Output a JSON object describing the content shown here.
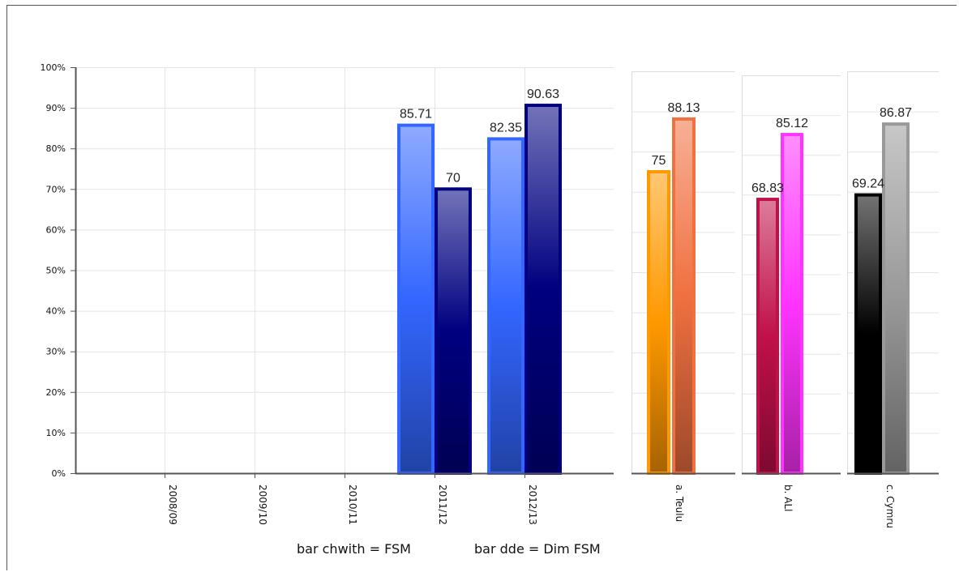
{
  "chart_data": [
    {
      "type": "bar",
      "categories": [
        "2008/09",
        "2009/10",
        "2010/11",
        "2011/12",
        "2012/13"
      ],
      "series": [
        {
          "values": [
            null,
            null,
            null,
            85.71,
            82.35
          ],
          "color": "#3366ff"
        },
        {
          "values": [
            null,
            null,
            null,
            70,
            90.63
          ],
          "color": "#000080"
        }
      ],
      "yticks": [
        "0%",
        "10%",
        "20%",
        "30%",
        "40%",
        "50%",
        "60%",
        "70%",
        "80%",
        "90%",
        "100%"
      ],
      "ylim": [
        0,
        100
      ],
      "grid": true
    },
    {
      "type": "bar",
      "categories": [
        "a. Teulu"
      ],
      "series": [
        {
          "values": [
            75
          ],
          "color": "#ff9900"
        },
        {
          "values": [
            88.13
          ],
          "color": "#f07040"
        }
      ],
      "ylim": [
        0,
        100
      ],
      "grid": true
    },
    {
      "type": "bar",
      "categories": [
        "b. ALl"
      ],
      "series": [
        {
          "values": [
            68.83
          ],
          "color": "#c0104a"
        },
        {
          "values": [
            85.12
          ],
          "color": "#ff33ff"
        }
      ],
      "ylim": [
        0,
        100
      ],
      "grid": true
    },
    {
      "type": "bar",
      "categories": [
        "c. Cymru"
      ],
      "series": [
        {
          "values": [
            69.24
          ],
          "color": "#000000"
        },
        {
          "values": [
            86.87
          ],
          "color": "#999999"
        }
      ],
      "ylim": [
        0,
        100
      ],
      "grid": true
    }
  ],
  "legend": {
    "fsm": "bar chwith = FSM",
    "non_fsm": "bar dde = Dim FSM"
  }
}
